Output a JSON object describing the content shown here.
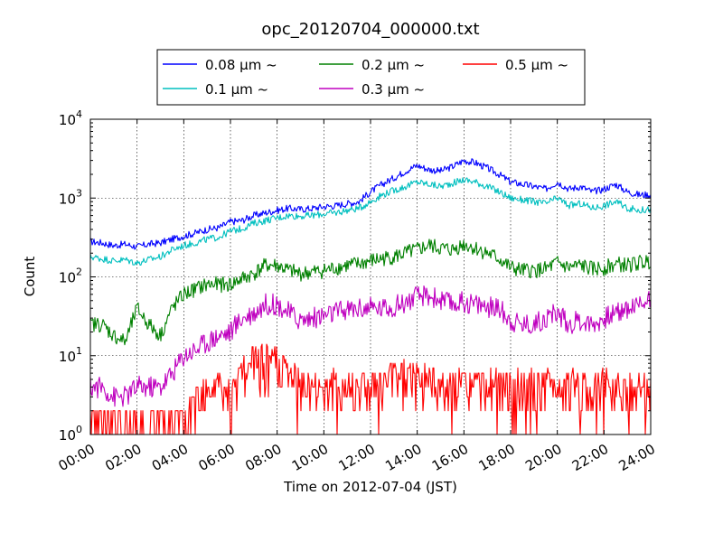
{
  "chart_data": {
    "type": "line",
    "title": "opc_20120704_000000.txt",
    "xlabel": "Time on 2012-07-04 (JST)",
    "ylabel": "Count",
    "y_scale": "log",
    "ylim": [
      1,
      10000
    ],
    "xlim": [
      "2012-07-04 00:00",
      "2012-07-05 00:00"
    ],
    "x_tick_labels": [
      "00:00",
      "02:00",
      "04:00",
      "06:00",
      "08:00",
      "10:00",
      "12:00",
      "14:00",
      "16:00",
      "18:00",
      "20:00",
      "22:00",
      "24:00"
    ],
    "y_tick_labels": [
      {
        "base": "10",
        "exp": "0"
      },
      {
        "base": "10",
        "exp": "1"
      },
      {
        "base": "10",
        "exp": "2"
      },
      {
        "base": "10",
        "exp": "3"
      },
      {
        "base": "10",
        "exp": "4"
      }
    ],
    "grid": true,
    "legend_position": "top-center, above plot",
    "x_hours": [
      0,
      0.5,
      1,
      1.5,
      2,
      2.5,
      3,
      3.5,
      4,
      4.5,
      5,
      5.5,
      6,
      6.5,
      7,
      7.5,
      8,
      8.5,
      9,
      9.5,
      10,
      10.5,
      11,
      11.5,
      12,
      12.5,
      13,
      13.5,
      14,
      14.5,
      15,
      15.5,
      16,
      16.5,
      17,
      17.5,
      18,
      18.5,
      19,
      19.5,
      20,
      20.5,
      21,
      21.5,
      22,
      22.5,
      23,
      23.5,
      24
    ],
    "series": [
      {
        "name": "0.08 µm ~",
        "color": "#0000ff",
        "values": [
          280,
          270,
          250,
          260,
          240,
          260,
          270,
          300,
          330,
          360,
          400,
          420,
          500,
          520,
          600,
          650,
          700,
          740,
          720,
          740,
          780,
          800,
          850,
          900,
          1200,
          1500,
          1800,
          2200,
          2600,
          2300,
          2200,
          2500,
          3000,
          2800,
          2400,
          2000,
          1600,
          1500,
          1400,
          1300,
          1600,
          1300,
          1400,
          1200,
          1300,
          1500,
          1200,
          1100,
          1100
        ]
      },
      {
        "name": "0.1 µm ~",
        "color": "#00bfbf",
        "values": [
          180,
          170,
          160,
          165,
          150,
          165,
          180,
          220,
          250,
          270,
          300,
          320,
          380,
          410,
          480,
          520,
          560,
          600,
          590,
          600,
          630,
          650,
          700,
          740,
          900,
          1100,
          1250,
          1400,
          1600,
          1500,
          1400,
          1550,
          1700,
          1600,
          1400,
          1200,
          1000,
          950,
          900,
          850,
          1000,
          800,
          850,
          750,
          800,
          900,
          750,
          700,
          720
        ]
      },
      {
        "name": "0.2 µm ~",
        "color": "#008000",
        "values": [
          25,
          25,
          18,
          15,
          40,
          25,
          18,
          40,
          60,
          70,
          80,
          80,
          80,
          95,
          110,
          140,
          140,
          120,
          110,
          115,
          120,
          130,
          140,
          145,
          160,
          170,
          180,
          200,
          220,
          250,
          230,
          220,
          260,
          230,
          200,
          170,
          130,
          120,
          120,
          125,
          150,
          130,
          140,
          125,
          130,
          145,
          140,
          150,
          160
        ]
      },
      {
        "name": "0.3 µm ~",
        "color": "#bf00bf",
        "values": [
          4,
          4,
          3,
          3,
          4,
          4,
          4,
          6,
          10,
          12,
          15,
          18,
          20,
          30,
          35,
          45,
          45,
          35,
          28,
          30,
          32,
          35,
          38,
          40,
          40,
          40,
          42,
          48,
          55,
          58,
          50,
          45,
          48,
          45,
          42,
          40,
          28,
          25,
          25,
          30,
          35,
          25,
          28,
          25,
          30,
          35,
          40,
          45,
          55
        ]
      },
      {
        "name": "0.5 µm ~",
        "color": "#ff0000",
        "values": [
          1,
          1,
          1,
          1,
          1,
          1,
          1,
          1,
          1,
          2,
          3,
          3,
          2,
          5,
          6,
          7,
          6,
          4,
          3,
          3,
          3,
          3,
          3,
          3,
          3,
          3,
          4,
          4,
          4,
          4,
          3,
          3,
          3,
          3,
          3,
          3,
          3,
          3,
          3,
          3,
          3,
          3,
          3,
          3,
          3,
          3,
          3,
          3,
          3
        ]
      }
    ]
  }
}
